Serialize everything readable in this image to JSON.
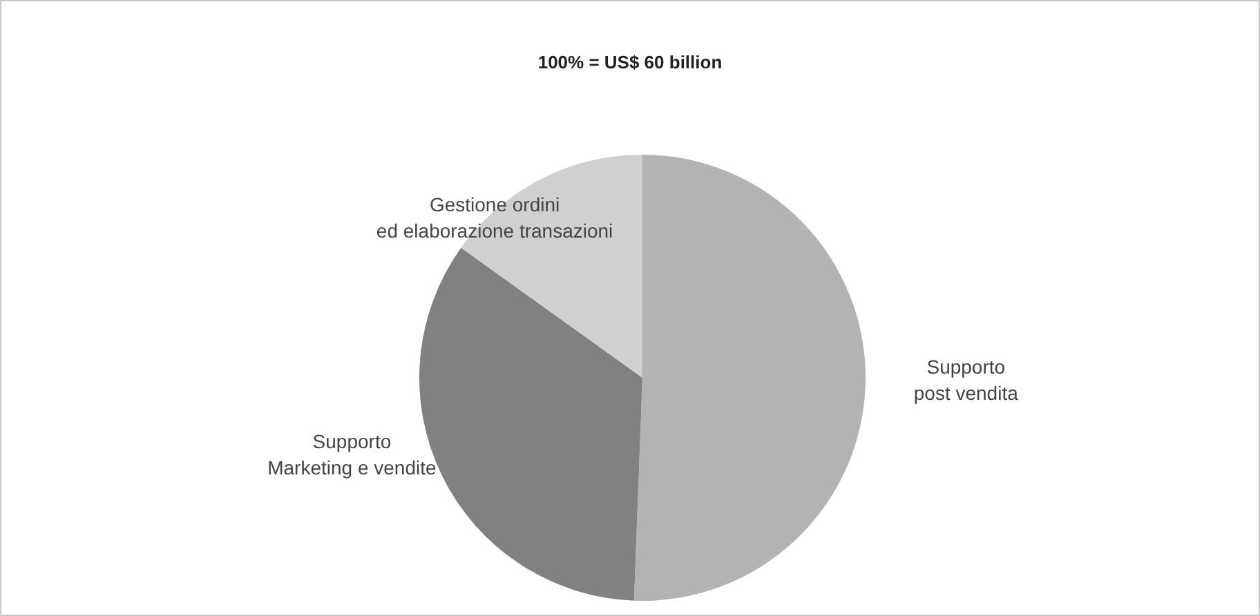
{
  "chart_data": {
    "type": "pie",
    "title": "100% = US$ 60 billion",
    "categories": [
      "Supporto\npost vendita",
      "Supporto\nMarketing e vendite",
      "Gestione ordini\ned elaborazione transazioni"
    ],
    "values": [
      50.6,
      34.3,
      15.1
    ],
    "colors": [
      "#b3b4b2",
      "#808180",
      "#d0d1cf"
    ],
    "legend": false
  }
}
